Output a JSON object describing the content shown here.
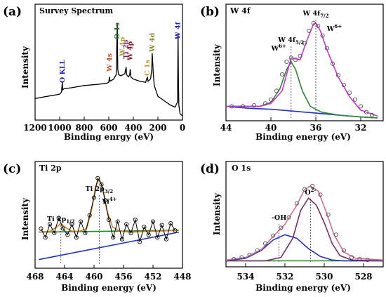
{
  "chart_data": [
    {
      "type": "line",
      "panel": "(a)",
      "title": "Survey Spectrum",
      "xlabel": "Binding enrgy (eV)",
      "ylabel": "Intensity",
      "xlim": [
        1200,
        0
      ],
      "xticks": [
        "1200",
        "1000",
        "800",
        "600",
        "400",
        "200",
        "0"
      ],
      "annotations": [
        {
          "text": "O KLL",
          "x": 978,
          "color": "#1f1fbf"
        },
        {
          "text": "W 4s",
          "x": 595,
          "color": "#c0502a"
        },
        {
          "text": "O 1s",
          "x": 531,
          "color": "#1a7a1a"
        },
        {
          "text": "Ti 2p",
          "x": 459,
          "color": "#7a1f7a"
        },
        {
          "text": "W 4p",
          "x": 425,
          "color": "#8b1a1a"
        },
        {
          "text": "C 1s",
          "x": 285,
          "color": "#b59a30"
        },
        {
          "text": "W 4d",
          "x": 247,
          "color": "#8a8a20"
        },
        {
          "text": "W 4f",
          "x": 36,
          "color": "#1f1fbf"
        },
        {
          "text": "W 4p",
          "x": 490,
          "color": "#b59a30"
        }
      ],
      "series": [
        {
          "x": [
            1200,
            1100,
            1000,
            985,
            978,
            975,
            965,
            900,
            800,
            700,
            620,
            600,
            595,
            590,
            560,
            540,
            531,
            527,
            520,
            500,
            470,
            459,
            455,
            440,
            430,
            425,
            420,
            400,
            350,
            300,
            285,
            280,
            260,
            250,
            247,
            244,
            238,
            230,
            200,
            150,
            100,
            60,
            40,
            36,
            33,
            30,
            20,
            0
          ],
          "y": [
            0.18,
            0.2,
            0.22,
            0.24,
            0.33,
            0.26,
            0.27,
            0.28,
            0.3,
            0.31,
            0.32,
            0.33,
            0.38,
            0.34,
            0.36,
            0.4,
            0.88,
            0.45,
            0.4,
            0.39,
            0.41,
            0.47,
            0.4,
            0.38,
            0.4,
            0.45,
            0.38,
            0.36,
            0.34,
            0.33,
            0.38,
            0.34,
            0.36,
            0.45,
            0.6,
            0.55,
            0.42,
            0.3,
            0.2,
            0.16,
            0.12,
            0.1,
            0.15,
            0.78,
            0.4,
            0.12,
            0.04,
            0.02
          ],
          "color": "#000000"
        }
      ]
    },
    {
      "type": "line",
      "panel": "(b)",
      "title": "W 4f",
      "xlabel": "Binding energy (eV)",
      "ylabel": "Intensity",
      "xlim": [
        44,
        30
      ],
      "xticks": [
        "44",
        "40",
        "36",
        "32"
      ],
      "annotations": [
        {
          "text": "W 4f",
          "sub": "5/2",
          "x": 38.2
        },
        {
          "text": "W 4f",
          "sub": "7/2",
          "x": 36.0
        },
        {
          "text": "W",
          "sup": "6+",
          "x": 39.3
        },
        {
          "text": "W",
          "sup": "6+",
          "x": 34.6
        }
      ],
      "series": [
        {
          "name_shown": false,
          "color": "#2030d0",
          "x": [
            44,
            42,
            40,
            38,
            36,
            34,
            32,
            30.5
          ],
          "y": [
            0.12,
            0.1,
            0.09,
            0.07,
            0.05,
            0.03,
            0.01,
            0.0
          ]
        },
        {
          "name_shown": false,
          "color": "#2a8a2a",
          "x": [
            44,
            41,
            40,
            39.2,
            38.6,
            38.2,
            37.8,
            37.2,
            36.5,
            35.5,
            34,
            32,
            30.5
          ],
          "y": [
            0.12,
            0.12,
            0.16,
            0.3,
            0.5,
            0.58,
            0.5,
            0.28,
            0.12,
            0.06,
            0.03,
            0.01,
            0.0
          ]
        },
        {
          "name_shown": false,
          "color": "#d030d0",
          "x": [
            44,
            41,
            40,
            39,
            38.2,
            37.4,
            36.8,
            36.2,
            36.0,
            35.6,
            35,
            34,
            33,
            32,
            30.5
          ],
          "y": [
            0.12,
            0.12,
            0.15,
            0.28,
            0.62,
            0.6,
            0.8,
            0.97,
            0.98,
            0.9,
            0.7,
            0.42,
            0.22,
            0.08,
            0.02
          ]
        },
        {
          "name_shown": false,
          "color": "#555555",
          "markers": "circle",
          "x": [
            43.5,
            42.5,
            41.5,
            40.5,
            40,
            39.5,
            39,
            38.6,
            38.2,
            37.8,
            37.4,
            37,
            36.6,
            36.2,
            35.8,
            35.4,
            35,
            34.5,
            34,
            33.5,
            33,
            32.5,
            32,
            31.5,
            31
          ],
          "y": [
            0.12,
            0.12,
            0.13,
            0.15,
            0.19,
            0.28,
            0.45,
            0.58,
            0.62,
            0.6,
            0.64,
            0.77,
            0.9,
            0.98,
            0.95,
            0.85,
            0.72,
            0.56,
            0.44,
            0.34,
            0.26,
            0.19,
            0.12,
            0.06,
            0.03
          ]
        }
      ]
    },
    {
      "type": "line",
      "panel": "(c)",
      "title": "Ti 2p",
      "xlabel": "Binding energy (eV)",
      "ylabel": "Intensity",
      "xlim": [
        468,
        448
      ],
      "xticks": [
        "468",
        "464",
        "460",
        "456",
        "452",
        "448"
      ],
      "annotations": [
        {
          "text": "Ti 2p",
          "sub": "1/2",
          "x": 464.5
        },
        {
          "text": "Ti 2p",
          "sub": "3/2",
          "x": 459.3
        },
        {
          "text": "Ti",
          "sup": "4+",
          "x": 458.5
        }
      ],
      "series": [
        {
          "name_shown": false,
          "color": "#2030d0",
          "x": [
            467.5,
            448.5
          ],
          "y": [
            0.05,
            0.36
          ]
        },
        {
          "name_shown": false,
          "color": "#2a8a2a",
          "x": [
            467.5,
            448.5
          ],
          "y": [
            0.36,
            0.38
          ]
        },
        {
          "name_shown": false,
          "color": "#d08020",
          "x": [
            467.5,
            466,
            465,
            464.5,
            464,
            463,
            462,
            461,
            460.3,
            459.8,
            459.3,
            458.8,
            458.3,
            457.5,
            456.5,
            455,
            452,
            448.5
          ],
          "y": [
            0.36,
            0.37,
            0.42,
            0.46,
            0.42,
            0.37,
            0.37,
            0.4,
            0.62,
            0.88,
            0.96,
            0.86,
            0.62,
            0.42,
            0.37,
            0.36,
            0.37,
            0.38
          ]
        },
        {
          "name_shown": false,
          "color": "#000000",
          "markers": "circle",
          "x": [
            467.2,
            466.6,
            466,
            465.4,
            464.8,
            464.2,
            463.6,
            463,
            462.4,
            461.8,
            461.2,
            460.6,
            460,
            459.5,
            459,
            458.5,
            458,
            457.4,
            456.8,
            456.2,
            455.6,
            455,
            454.4,
            453.8,
            453.2,
            452.6,
            452,
            451.4,
            450.8,
            450.2,
            449.6,
            449
          ],
          "y": [
            0.4,
            0.3,
            0.45,
            0.35,
            0.52,
            0.4,
            0.33,
            0.45,
            0.3,
            0.48,
            0.35,
            0.55,
            0.75,
            0.97,
            0.9,
            0.72,
            0.5,
            0.3,
            0.48,
            0.28,
            0.45,
            0.35,
            0.5,
            0.25,
            0.42,
            0.33,
            0.48,
            0.3,
            0.44,
            0.28,
            0.46,
            0.38
          ]
        }
      ]
    },
    {
      "type": "line",
      "panel": "(d)",
      "title": "O 1s",
      "xlabel": "Binding energy (eV)",
      "ylabel": "Intensity",
      "xlim": [
        535,
        527
      ],
      "xticks": [
        "534",
        "532",
        "530",
        "528"
      ],
      "annotations": [
        {
          "text": "-OH",
          "x": 532.3
        },
        {
          "text": "O",
          "sup": "2-",
          "x": 530.7
        }
      ],
      "series": [
        {
          "name_shown": false,
          "color": "#2a8a2a",
          "x": [
            535,
            527
          ],
          "y": [
            0.02,
            0.02
          ]
        },
        {
          "name_shown": false,
          "color": "#2030d0",
          "x": [
            535,
            534,
            533.2,
            532.6,
            532.0,
            531.4,
            530.8,
            530.2,
            529.6,
            529,
            527
          ],
          "y": [
            0.02,
            0.05,
            0.14,
            0.26,
            0.32,
            0.28,
            0.16,
            0.07,
            0.03,
            0.02,
            0.02
          ]
        },
        {
          "name_shown": false,
          "color": "#7a2a6a",
          "x": [
            535,
            533,
            532.2,
            531.6,
            531.2,
            530.8,
            530.4,
            530.0,
            529.6,
            529.2,
            528.6,
            527
          ],
          "y": [
            0.02,
            0.02,
            0.06,
            0.28,
            0.6,
            0.74,
            0.66,
            0.46,
            0.22,
            0.08,
            0.03,
            0.02
          ]
        },
        {
          "name_shown": false,
          "color": "#d07090",
          "x": [
            535,
            534,
            533.2,
            532.6,
            532.0,
            531.4,
            531.0,
            530.7,
            530.3,
            529.9,
            529.5,
            529.0,
            528.4,
            527
          ],
          "y": [
            0.03,
            0.06,
            0.15,
            0.3,
            0.44,
            0.66,
            0.84,
            0.88,
            0.82,
            0.58,
            0.32,
            0.12,
            0.05,
            0.03
          ]
        },
        {
          "name_shown": false,
          "color": "#555555",
          "markers": "circle",
          "x": [
            534.6,
            534.2,
            533.8,
            533.4,
            533.0,
            532.6,
            532.2,
            531.8,
            531.4,
            531.0,
            530.6,
            530.2,
            529.8,
            529.4,
            529.0,
            528.6,
            528.2,
            527.8
          ],
          "y": [
            0.04,
            0.06,
            0.09,
            0.14,
            0.22,
            0.31,
            0.4,
            0.52,
            0.68,
            0.84,
            0.88,
            0.78,
            0.55,
            0.32,
            0.14,
            0.06,
            0.04,
            0.03
          ]
        }
      ]
    }
  ],
  "panels": {
    "a": {
      "label": "(a)",
      "title": "Survey Spectrum",
      "ylabel": "Intensity",
      "xlabel": "Binding enrgy (eV)"
    },
    "b": {
      "label": "(b)",
      "title": "W 4f",
      "ylabel": "Intensity",
      "xlabel": "Binding energy (eV)"
    },
    "c": {
      "label": "(c)",
      "title": "Ti 2p",
      "ylabel": "Intensity",
      "xlabel": "Binding energy (eV)"
    },
    "d": {
      "label": "(d)",
      "title": "O 1s",
      "ylabel": "Intensity",
      "xlabel": "Binding energy (eV)"
    }
  }
}
